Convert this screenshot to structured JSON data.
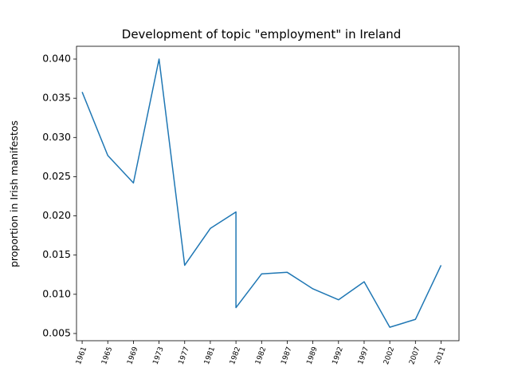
{
  "chart_data": {
    "type": "line",
    "title": "Development of topic \"employment\" in Ireland",
    "y_label": "proportion in Irish manifestos",
    "x": [
      0,
      1,
      2,
      3,
      4,
      5,
      6,
      6,
      7,
      8,
      9,
      10,
      11,
      12,
      13,
      14
    ],
    "values": [
      0.0358,
      0.0277,
      0.0242,
      0.04,
      0.0137,
      0.0184,
      0.0205,
      0.0083,
      0.0126,
      0.0128,
      0.0107,
      0.0093,
      0.0116,
      0.0058,
      0.0068,
      0.0137
    ],
    "color": "#1f77b4",
    "xlim": [
      -0.22,
      14.7
    ],
    "xticks": [
      {
        "value": 0,
        "label": "1961"
      },
      {
        "value": 1,
        "label": "1965"
      },
      {
        "value": 2,
        "label": "1969"
      },
      {
        "value": 3,
        "label": "1973"
      },
      {
        "value": 4,
        "label": "1977"
      },
      {
        "value": 5,
        "label": "1981"
      },
      {
        "value": 6,
        "label": "1982"
      },
      {
        "value": 7,
        "label": "1982"
      },
      {
        "value": 8,
        "label": "1987"
      },
      {
        "value": 9,
        "label": "1989"
      },
      {
        "value": 10,
        "label": "1992"
      },
      {
        "value": 11,
        "label": "1997"
      },
      {
        "value": 12,
        "label": "2002"
      },
      {
        "value": 13,
        "label": "2007"
      },
      {
        "value": 14,
        "label": "2011"
      }
    ],
    "ylim": [
      0.00408,
      0.04163
    ],
    "yticks": [
      0.005,
      {
        "value": 0.01,
        "label": "0.010"
      },
      0.015,
      {
        "value": 0.02,
        "label": "0.020"
      },
      0.025,
      {
        "value": 0.03,
        "label": "0.030"
      },
      0.035,
      {
        "value": 0.04,
        "label": "0.040"
      }
    ]
  }
}
